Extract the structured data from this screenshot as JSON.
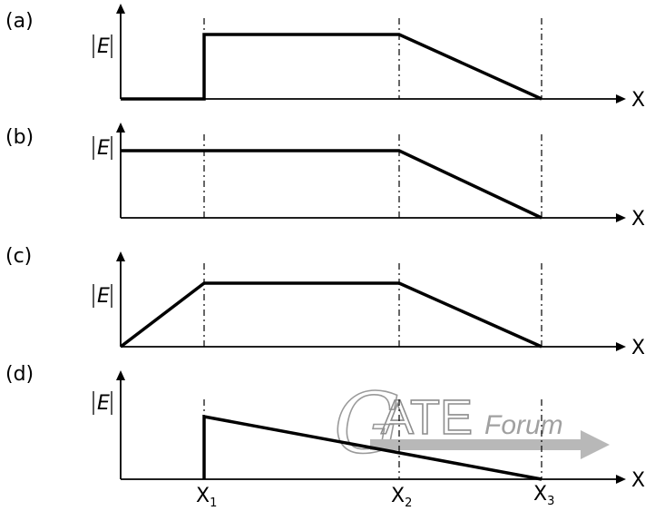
{
  "panels": [
    {
      "label": "(a)",
      "y_axis_label": "E",
      "x_axis_label": "X"
    },
    {
      "label": "(b)",
      "y_axis_label": "E",
      "x_axis_label": "X"
    },
    {
      "label": "(c)",
      "y_axis_label": "E",
      "x_axis_label": "X"
    },
    {
      "label": "(d)",
      "y_axis_label": "E",
      "x_axis_label": "X"
    }
  ],
  "x_ticks": [
    {
      "base": "X",
      "sub": "1"
    },
    {
      "base": "X",
      "sub": "2"
    },
    {
      "base": "X",
      "sub": "3"
    }
  ],
  "watermark": {
    "g": "G",
    "ate": "ATE",
    "forum": "Forum"
  },
  "colors": {
    "line": "#000000",
    "watermark": "#9a9a9a",
    "background": "#ffffff"
  }
}
